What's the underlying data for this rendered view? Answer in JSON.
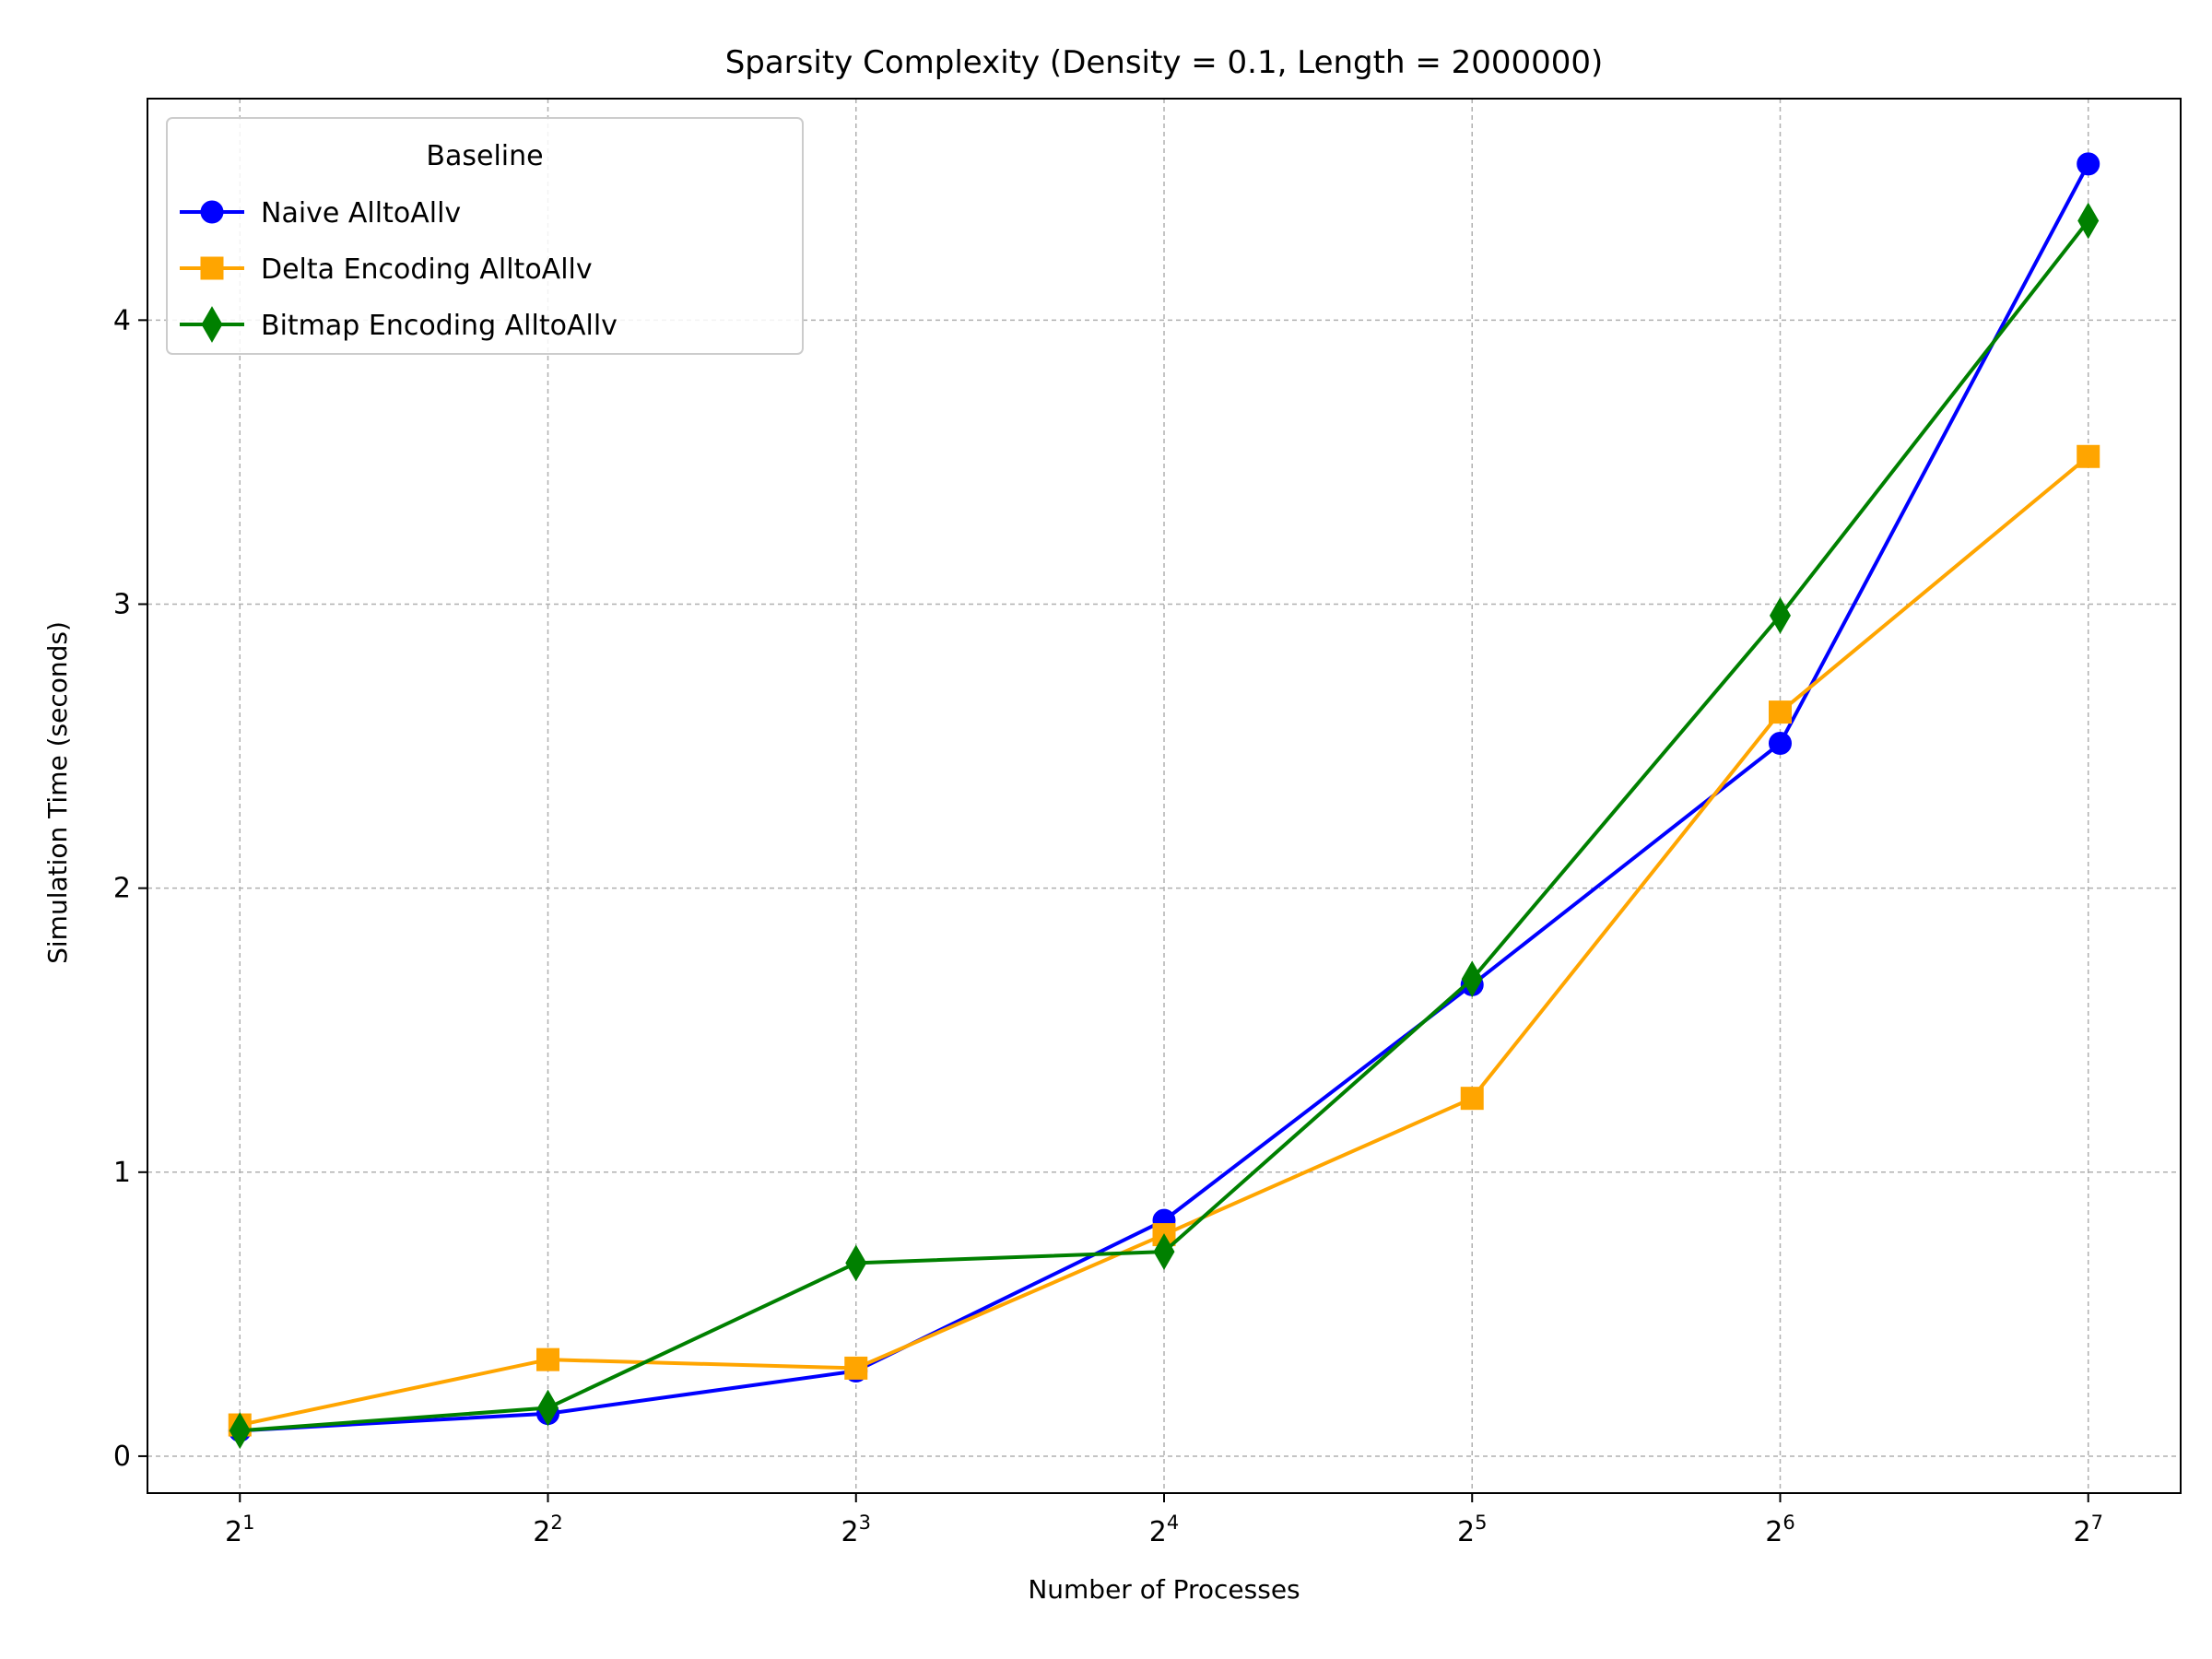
{
  "chart_data": {
    "type": "line",
    "title": "Sparsity Complexity (Density = 0.1, Length = 2000000)",
    "xlabel": "Number of Processes",
    "ylabel": "Simulation Time (seconds)",
    "x_scale": "log2",
    "x": [
      2,
      4,
      8,
      16,
      32,
      64,
      128
    ],
    "x_tick_labels": [
      {
        "base": "2",
        "exp": "1"
      },
      {
        "base": "2",
        "exp": "2"
      },
      {
        "base": "2",
        "exp": "3"
      },
      {
        "base": "2",
        "exp": "4"
      },
      {
        "base": "2",
        "exp": "5"
      },
      {
        "base": "2",
        "exp": "6"
      },
      {
        "base": "2",
        "exp": "7"
      }
    ],
    "y_ticks": [
      "0",
      "1",
      "2",
      "3",
      "4"
    ],
    "ylim": [
      -0.13,
      4.78
    ],
    "grid": true,
    "legend": {
      "title": "Baseline",
      "placement": "upper-left"
    },
    "series": [
      {
        "name": "Naive AlltoAllv",
        "color": "#0000ff",
        "marker": "circle",
        "values": [
          0.09,
          0.15,
          0.3,
          0.83,
          1.66,
          2.51,
          4.55
        ]
      },
      {
        "name": "Delta Encoding AlltoAllv",
        "color": "#ffa500",
        "marker": "square",
        "values": [
          0.11,
          0.34,
          0.31,
          0.78,
          1.26,
          2.62,
          3.52
        ]
      },
      {
        "name": "Bitmap Encoding AlltoAllv",
        "color": "#008000",
        "marker": "diamond",
        "values": [
          0.09,
          0.17,
          0.68,
          0.72,
          1.68,
          2.96,
          4.35
        ]
      }
    ]
  }
}
